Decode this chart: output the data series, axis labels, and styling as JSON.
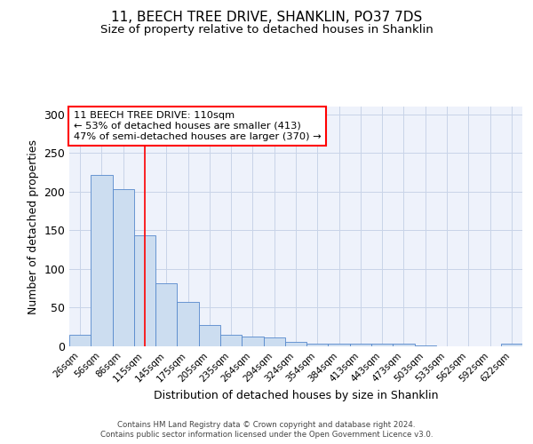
{
  "title1": "11, BEECH TREE DRIVE, SHANKLIN, PO37 7DS",
  "title2": "Size of property relative to detached houses in Shanklin",
  "xlabel": "Distribution of detached houses by size in Shanklin",
  "ylabel": "Number of detached properties",
  "bar_labels": [
    "26sqm",
    "56sqm",
    "86sqm",
    "115sqm",
    "145sqm",
    "175sqm",
    "205sqm",
    "235sqm",
    "264sqm",
    "294sqm",
    "324sqm",
    "354sqm",
    "384sqm",
    "413sqm",
    "443sqm",
    "473sqm",
    "503sqm",
    "533sqm",
    "562sqm",
    "592sqm",
    "622sqm"
  ],
  "bar_values": [
    15,
    222,
    203,
    144,
    81,
    57,
    28,
    15,
    13,
    11,
    6,
    4,
    4,
    4,
    4,
    3,
    1,
    0,
    0,
    0,
    3
  ],
  "bar_color": "#ccddf0",
  "bar_edge_color": "#5588cc",
  "grid_color": "#c8d4e8",
  "background_color": "#eef2fb",
  "annotation_box_text": "11 BEECH TREE DRIVE: 110sqm\n← 53% of detached houses are smaller (413)\n47% of semi-detached houses are larger (370) →",
  "annotation_box_color": "white",
  "annotation_box_edge_color": "red",
  "vline_x_index": 3.0,
  "vline_color": "red",
  "footer_text": "Contains HM Land Registry data © Crown copyright and database right 2024.\nContains public sector information licensed under the Open Government Licence v3.0.",
  "ylim": [
    0,
    310
  ],
  "yticks": [
    0,
    50,
    100,
    150,
    200,
    250,
    300
  ],
  "title1_fontsize": 11,
  "title2_fontsize": 9.5,
  "ylabel_fontsize": 9,
  "xlabel_fontsize": 9
}
